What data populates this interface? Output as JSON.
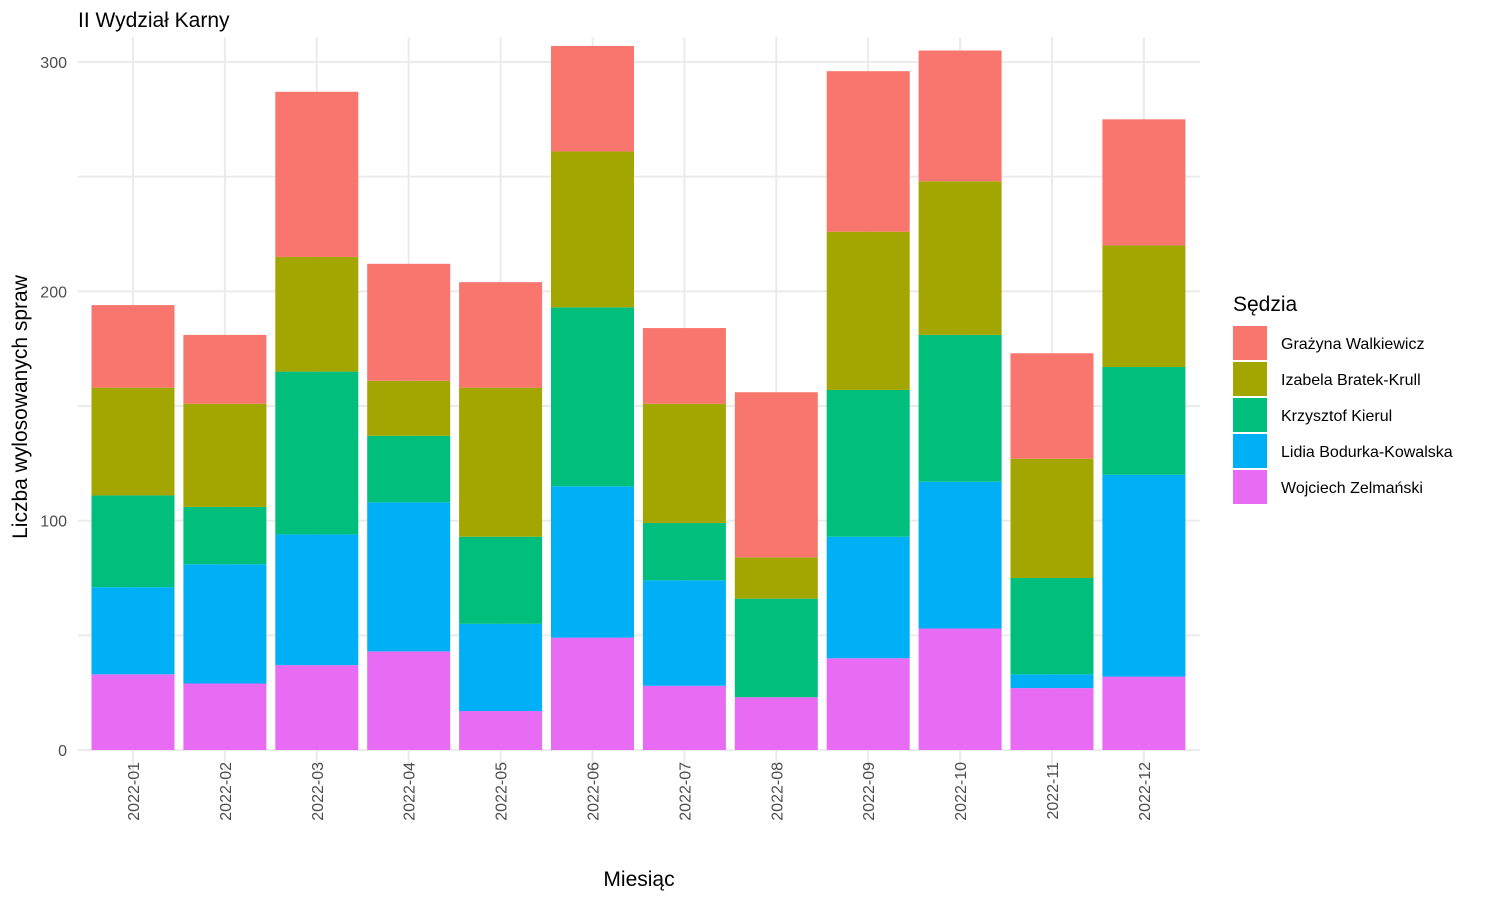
{
  "chart_data": {
    "type": "bar",
    "stacked": true,
    "title": "II Wydział Karny",
    "xlabel": "Miesiąc",
    "ylabel": "Liczba wylosowanych spraw",
    "ylim": [
      0,
      310
    ],
    "yticks": [
      0,
      100,
      200,
      300
    ],
    "grid": true,
    "legend_position": "right",
    "legend_title": "Sędzia",
    "categories": [
      "2022-01",
      "2022-02",
      "2022-03",
      "2022-04",
      "2022-05",
      "2022-06",
      "2022-07",
      "2022-08",
      "2022-09",
      "2022-10",
      "2022-11",
      "2022-12"
    ],
    "series": [
      {
        "name": "Grażyna Walkiewicz",
        "color": "#F8766D",
        "values": [
          36,
          30,
          72,
          51,
          46,
          46,
          33,
          72,
          70,
          57,
          46,
          55
        ]
      },
      {
        "name": "Izabela Bratek-Krull",
        "color": "#A3A500",
        "values": [
          47,
          45,
          50,
          24,
          65,
          68,
          52,
          18,
          69,
          67,
          52,
          53
        ]
      },
      {
        "name": "Krzysztof Kierul",
        "color": "#00BF7D",
        "values": [
          40,
          25,
          71,
          29,
          38,
          78,
          25,
          43,
          64,
          64,
          42,
          47
        ]
      },
      {
        "name": "Lidia Bodurka-Kowalska",
        "color": "#00B0F6",
        "values": [
          38,
          52,
          57,
          65,
          38,
          66,
          46,
          0,
          53,
          64,
          6,
          88
        ]
      },
      {
        "name": "Wojciech Zelmański",
        "color": "#E76BF3",
        "values": [
          33,
          29,
          37,
          43,
          17,
          49,
          28,
          23,
          40,
          53,
          27,
          32
        ]
      }
    ]
  }
}
